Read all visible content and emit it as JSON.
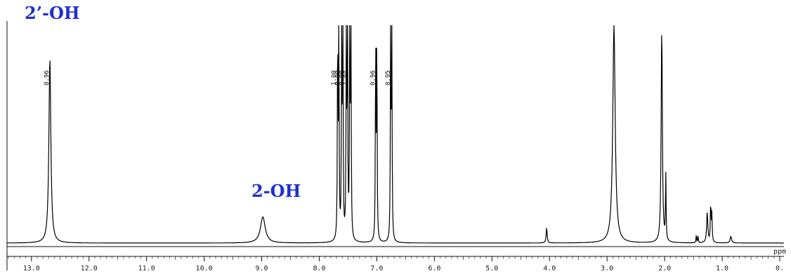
{
  "chart_data": {
    "type": "line",
    "title": "",
    "xlabel": "",
    "ylabel": "",
    "x_axis_unit": "ppm",
    "xlim": [
      13.4,
      0.0
    ],
    "x_ticks": [
      13.0,
      12.0,
      11.0,
      10.0,
      9.0,
      8.0,
      7.0,
      6.0,
      5.0,
      4.0,
      3.0,
      2.0,
      1.0,
      0.0
    ],
    "x_tick_labels": [
      "13.0",
      "12.0",
      "11.0",
      "10.0",
      "9.0",
      "8.0",
      "7.0",
      "6.0",
      "5.0",
      "4.0",
      "3.0",
      "2.0",
      "1.0",
      "0."
    ],
    "grid": false,
    "peaks": [
      {
        "ppm": 12.68,
        "height": 0.85,
        "width": 0.02
      },
      {
        "ppm": 8.98,
        "height": 0.12,
        "width": 0.05
      },
      {
        "ppm": 7.68,
        "height": 1.0,
        "width": 0.006
      },
      {
        "ppm": 7.66,
        "height": 1.0,
        "width": 0.006
      },
      {
        "ppm": 7.61,
        "height": 1.0,
        "width": 0.006
      },
      {
        "ppm": 7.59,
        "height": 1.0,
        "width": 0.006
      },
      {
        "ppm": 7.53,
        "height": 1.0,
        "width": 0.006
      },
      {
        "ppm": 7.51,
        "height": 1.0,
        "width": 0.006
      },
      {
        "ppm": 7.47,
        "height": 1.0,
        "width": 0.006
      },
      {
        "ppm": 7.45,
        "height": 1.0,
        "width": 0.006
      },
      {
        "ppm": 7.02,
        "height": 0.95,
        "width": 0.006
      },
      {
        "ppm": 7.0,
        "height": 0.95,
        "width": 0.006
      },
      {
        "ppm": 6.76,
        "height": 0.97,
        "width": 0.006
      },
      {
        "ppm": 6.74,
        "height": 0.97,
        "width": 0.006
      },
      {
        "ppm": 4.05,
        "height": 0.07,
        "width": 0.01
      },
      {
        "ppm": 2.88,
        "height": 1.0,
        "width": 0.025
      },
      {
        "ppm": 2.05,
        "height": 1.0,
        "width": 0.012
      },
      {
        "ppm": 1.98,
        "height": 0.3,
        "width": 0.006
      },
      {
        "ppm": 1.45,
        "height": 0.04,
        "width": 0.005
      },
      {
        "ppm": 1.42,
        "height": 0.04,
        "width": 0.005
      },
      {
        "ppm": 1.26,
        "height": 0.14,
        "width": 0.012
      },
      {
        "ppm": 1.2,
        "height": 0.18,
        "width": 0.007
      },
      {
        "ppm": 1.18,
        "height": 0.13,
        "width": 0.007
      },
      {
        "ppm": 0.85,
        "height": 0.03,
        "width": 0.015
      }
    ],
    "integrals": [
      {
        "ppm": 12.68,
        "label": "0.96"
      },
      {
        "ppm": 7.69,
        "label": "1.00"
      },
      {
        "ppm": 7.63,
        "label": "0.99"
      },
      {
        "ppm": 7.55,
        "label": "0.98"
      },
      {
        "ppm": 7.49,
        "label": "1.04"
      },
      {
        "ppm": 7.01,
        "label": "0.96"
      },
      {
        "ppm": 6.75,
        "label": "0.95"
      }
    ],
    "annotations": [
      {
        "text": "2’-OH",
        "ppm": 12.68
      },
      {
        "text": "2-OH",
        "ppm": 8.98
      }
    ]
  },
  "colors": {
    "annotation": "#1f2fd0",
    "spectrum": "#000000"
  }
}
